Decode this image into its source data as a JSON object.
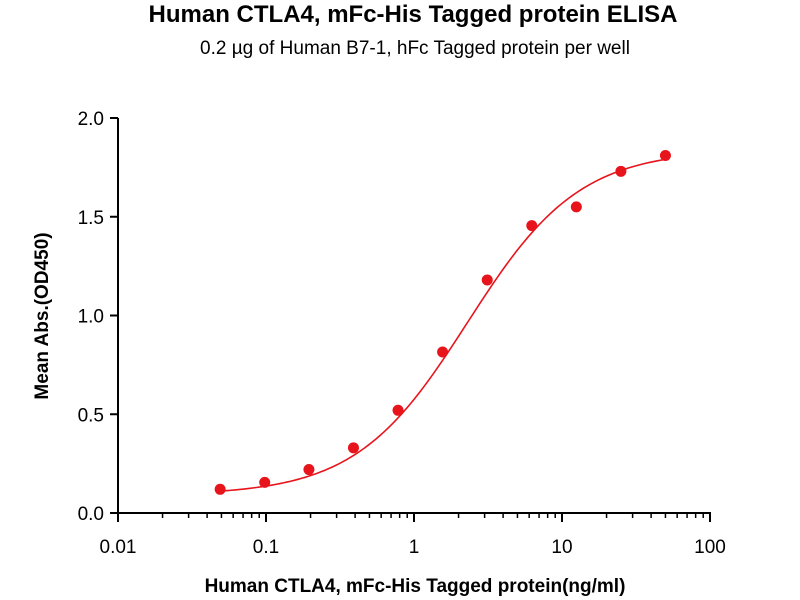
{
  "chart_data": {
    "type": "scatter",
    "title": "Human CTLA4, mFc-His Tagged protein ELISA",
    "subtitle": "0.2 µg of Human B7-1, hFc Tagged protein per well",
    "xlabel": "Human CTLA4, mFc-His Tagged protein(ng/ml)",
    "ylabel": "Mean Abs.(OD450)",
    "xscale": "log",
    "xlim": [
      0.01,
      100
    ],
    "ylim": [
      0,
      2.0
    ],
    "xticks": [
      "0.01",
      "0.1",
      "1",
      "10",
      "100"
    ],
    "yticks": [
      "0.0",
      "0.5",
      "1.0",
      "1.5",
      "2.0"
    ],
    "grid": false,
    "color": "#e8141c",
    "points": [
      {
        "x": 0.049,
        "y": 0.12
      },
      {
        "x": 0.098,
        "y": 0.155
      },
      {
        "x": 0.195,
        "y": 0.22
      },
      {
        "x": 0.39,
        "y": 0.33
      },
      {
        "x": 0.78,
        "y": 0.52
      },
      {
        "x": 1.56,
        "y": 0.815
      },
      {
        "x": 3.125,
        "y": 1.18
      },
      {
        "x": 6.25,
        "y": 1.455
      },
      {
        "x": 12.5,
        "y": 1.55
      },
      {
        "x": 25,
        "y": 1.73
      },
      {
        "x": 50,
        "y": 1.81
      }
    ],
    "fit": {
      "bottom": 0.09,
      "top": 1.84,
      "ec50": 2.3,
      "hill": 1.15
    }
  }
}
